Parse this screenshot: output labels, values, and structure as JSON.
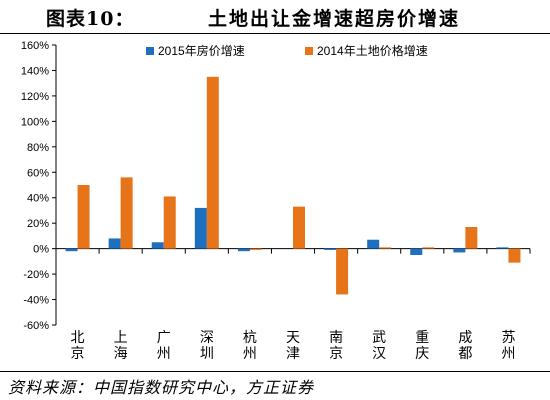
{
  "header": {
    "figure_label": "图表10：",
    "title": "土地出让金增速超房价增速"
  },
  "footer": {
    "source": "资料来源：中国指数研究中心，方正证券"
  },
  "colors": {
    "series_2015": "#1f6fbf",
    "series_2014": "#e8741a"
  },
  "chart_data": {
    "type": "bar",
    "categories": [
      "北京",
      "上海",
      "广州",
      "深圳",
      "杭州",
      "天津",
      "南京",
      "武汉",
      "重庆",
      "成都",
      "苏州"
    ],
    "series": [
      {
        "name": "2015年房价增速",
        "values": [
          -2,
          8,
          5,
          32,
          -2,
          0,
          -1,
          7,
          -5,
          -3,
          1
        ]
      },
      {
        "name": "2014年土地价格增速",
        "values": [
          50,
          56,
          41,
          135,
          -1,
          33,
          -36,
          1,
          1,
          17,
          -11
        ]
      }
    ],
    "ylim": [
      -60,
      160
    ],
    "yticks": [
      "-60%",
      "-40%",
      "-20%",
      "0%",
      "20%",
      "40%",
      "60%",
      "80%",
      "100%",
      "120%",
      "140%",
      "160%"
    ],
    "legend": "top",
    "grid": false
  }
}
